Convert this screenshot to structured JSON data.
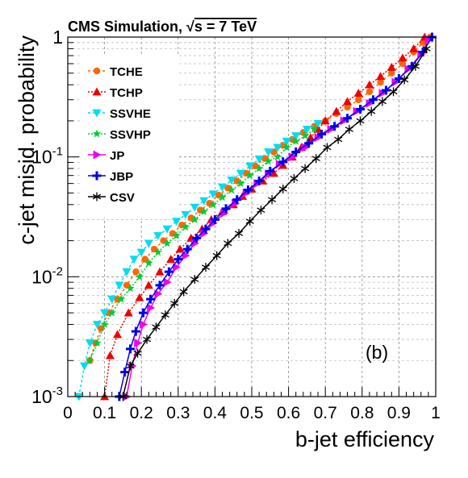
{
  "chart_data": {
    "type": "line",
    "title": "CMS Simulation, √s = 7 TeV",
    "title_parts": {
      "prefix": "CMS Simulation, ",
      "radical": "√",
      "suffix": "s = 7 TeV"
    },
    "panel_label": "(b)",
    "xlabel": "b-jet efficiency",
    "ylabel": "c-jet misid. probability",
    "xlim": [
      0,
      1
    ],
    "ylim": [
      0.001,
      1
    ],
    "yscale": "log",
    "grid": true,
    "legend_position": "top-left",
    "x_ticks": [
      0,
      0.1,
      0.2,
      0.3,
      0.4,
      0.5,
      0.6,
      0.7,
      0.8,
      0.9,
      1
    ],
    "x_tick_labels": [
      "0",
      "0.1",
      "0.2",
      "0.3",
      "0.4",
      "0.5",
      "0.6",
      "0.7",
      "0.8",
      "0.9",
      "1"
    ],
    "y_ticks": [
      {
        "value": 0.001,
        "base": "10",
        "exp": "-3"
      },
      {
        "value": 0.01,
        "base": "10",
        "exp": "-2"
      },
      {
        "value": 0.1,
        "base": "10",
        "exp": "-1"
      },
      {
        "value": 1,
        "base": "1",
        "exp": ""
      }
    ],
    "series": [
      {
        "name": "TCHE",
        "color": "#ff6600",
        "marker": "circle",
        "dash": "3,3",
        "x": [
          0.06,
          0.075,
          0.09,
          0.11,
          0.135,
          0.16,
          0.185,
          0.21,
          0.235,
          0.26,
          0.285,
          0.31,
          0.335,
          0.36,
          0.385,
          0.41,
          0.435,
          0.46,
          0.485,
          0.51,
          0.535,
          0.56,
          0.585,
          0.61,
          0.64,
          0.67,
          0.7,
          0.73,
          0.76,
          0.79,
          0.82,
          0.85,
          0.88,
          0.91,
          0.94,
          0.965,
          0.985
        ],
        "y": [
          0.002,
          0.0028,
          0.0037,
          0.005,
          0.0065,
          0.0085,
          0.011,
          0.014,
          0.017,
          0.02,
          0.023,
          0.027,
          0.031,
          0.036,
          0.041,
          0.048,
          0.055,
          0.063,
          0.073,
          0.084,
          0.097,
          0.11,
          0.125,
          0.14,
          0.16,
          0.18,
          0.2,
          0.23,
          0.26,
          0.3,
          0.35,
          0.42,
          0.5,
          0.6,
          0.75,
          0.9,
          1.0
        ]
      },
      {
        "name": "TCHP",
        "color": "#ee0000",
        "marker": "triangle",
        "dash": "2,2",
        "x": [
          0.1,
          0.115,
          0.135,
          0.165,
          0.195,
          0.22,
          0.25,
          0.28,
          0.305,
          0.335,
          0.365,
          0.39,
          0.42,
          0.45,
          0.475,
          0.5,
          0.53,
          0.56,
          0.585,
          0.61,
          0.635,
          0.66,
          0.68,
          0.7,
          0.73,
          0.76,
          0.79,
          0.82,
          0.85,
          0.88,
          0.91,
          0.94,
          0.97
        ],
        "y": [
          0.001,
          0.0022,
          0.0033,
          0.005,
          0.0067,
          0.0085,
          0.011,
          0.014,
          0.017,
          0.021,
          0.025,
          0.03,
          0.035,
          0.04,
          0.047,
          0.054,
          0.063,
          0.073,
          0.085,
          0.1,
          0.12,
          0.145,
          0.17,
          0.2,
          0.24,
          0.29,
          0.34,
          0.4,
          0.47,
          0.56,
          0.67,
          0.8,
          1.0
        ]
      },
      {
        "name": "SSVHE",
        "color": "#00ddee",
        "marker": "tri-down",
        "dash": "3,3",
        "x": [
          0.03,
          0.045,
          0.06,
          0.08,
          0.1,
          0.12,
          0.14,
          0.16,
          0.18,
          0.2,
          0.22,
          0.245,
          0.27,
          0.295,
          0.32,
          0.345,
          0.37,
          0.395,
          0.42,
          0.445,
          0.47,
          0.495,
          0.52,
          0.545,
          0.57,
          0.595,
          0.62,
          0.65,
          0.68
        ],
        "y": [
          0.001,
          0.0018,
          0.0028,
          0.004,
          0.005,
          0.0065,
          0.0085,
          0.011,
          0.014,
          0.016,
          0.019,
          0.022,
          0.025,
          0.029,
          0.033,
          0.038,
          0.043,
          0.049,
          0.056,
          0.064,
          0.073,
          0.084,
          0.096,
          0.11,
          0.12,
          0.135,
          0.15,
          0.17,
          0.19
        ]
      },
      {
        "name": "SSVHP",
        "color": "#00cc33",
        "marker": "star",
        "dash": "2,2",
        "x": [
          0.06,
          0.08,
          0.1,
          0.12,
          0.145,
          0.17,
          0.195,
          0.22,
          0.245,
          0.27,
          0.295,
          0.32,
          0.345,
          0.37,
          0.395,
          0.42,
          0.445,
          0.47,
          0.495,
          0.52,
          0.545,
          0.57,
          0.595,
          0.62,
          0.645,
          0.67
        ],
        "y": [
          0.002,
          0.0028,
          0.004,
          0.005,
          0.0065,
          0.008,
          0.01,
          0.013,
          0.016,
          0.019,
          0.022,
          0.026,
          0.03,
          0.035,
          0.04,
          0.046,
          0.053,
          0.06,
          0.07,
          0.08,
          0.092,
          0.1,
          0.12,
          0.135,
          0.15,
          0.17
        ]
      },
      {
        "name": "JP",
        "color": "#ee00ee",
        "marker": "tri-right",
        "dash": "",
        "x": [
          0.16,
          0.175,
          0.19,
          0.205,
          0.225,
          0.245,
          0.27,
          0.295,
          0.32,
          0.345,
          0.37,
          0.395,
          0.425,
          0.455,
          0.485,
          0.515,
          0.545,
          0.575,
          0.61,
          0.645,
          0.68,
          0.715,
          0.75,
          0.785,
          0.82,
          0.855,
          0.89,
          0.925,
          0.96,
          0.98
        ],
        "y": [
          0.001,
          0.0018,
          0.0028,
          0.004,
          0.0055,
          0.0072,
          0.009,
          0.012,
          0.015,
          0.019,
          0.023,
          0.028,
          0.034,
          0.041,
          0.05,
          0.06,
          0.072,
          0.087,
          0.1,
          0.12,
          0.145,
          0.17,
          0.2,
          0.24,
          0.28,
          0.34,
          0.42,
          0.54,
          0.72,
          0.95
        ]
      },
      {
        "name": "JBP",
        "color": "#0000ee",
        "marker": "plus",
        "dash": "",
        "x": [
          0.14,
          0.155,
          0.17,
          0.185,
          0.205,
          0.225,
          0.25,
          0.275,
          0.3,
          0.325,
          0.35,
          0.375,
          0.4,
          0.43,
          0.46,
          0.49,
          0.52,
          0.55,
          0.585,
          0.62,
          0.655,
          0.69,
          0.725,
          0.76,
          0.795,
          0.83,
          0.865,
          0.9,
          0.935,
          0.965,
          0.99
        ],
        "y": [
          0.001,
          0.0016,
          0.0025,
          0.0035,
          0.005,
          0.0065,
          0.0085,
          0.011,
          0.014,
          0.017,
          0.021,
          0.025,
          0.03,
          0.037,
          0.044,
          0.053,
          0.063,
          0.076,
          0.091,
          0.11,
          0.13,
          0.155,
          0.18,
          0.21,
          0.25,
          0.3,
          0.36,
          0.45,
          0.57,
          0.75,
          1.0
        ]
      },
      {
        "name": "CSV",
        "color": "#000000",
        "marker": "asterisk",
        "dash": "",
        "x": [
          0.15,
          0.17,
          0.19,
          0.215,
          0.24,
          0.265,
          0.29,
          0.315,
          0.345,
          0.375,
          0.405,
          0.435,
          0.465,
          0.495,
          0.525,
          0.555,
          0.585,
          0.615,
          0.645,
          0.675,
          0.705,
          0.735,
          0.765,
          0.795,
          0.825,
          0.855,
          0.885,
          0.915,
          0.945,
          0.975
        ],
        "y": [
          0.001,
          0.0018,
          0.0023,
          0.003,
          0.0038,
          0.0048,
          0.006,
          0.0075,
          0.0095,
          0.012,
          0.015,
          0.019,
          0.023,
          0.029,
          0.036,
          0.044,
          0.054,
          0.066,
          0.08,
          0.097,
          0.12,
          0.14,
          0.17,
          0.2,
          0.24,
          0.29,
          0.35,
          0.44,
          0.57,
          0.8
        ]
      }
    ]
  }
}
